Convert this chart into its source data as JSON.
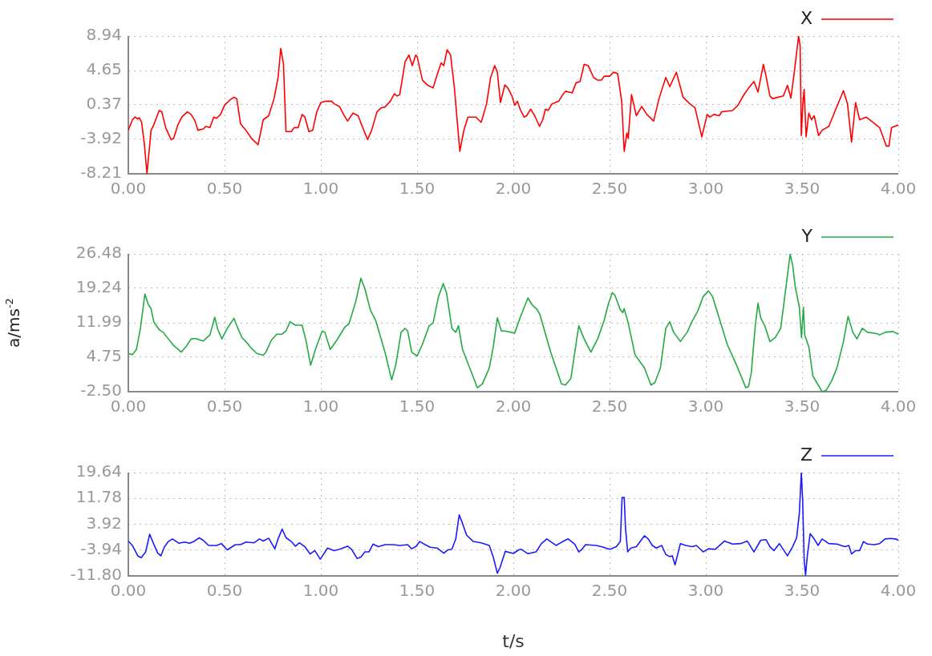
{
  "chart_data": [
    {
      "type": "line",
      "legend": "top right",
      "grid": true,
      "x": [
        0,
        0.021,
        0.035,
        0.049,
        0.056,
        0.069,
        0.083,
        0.097,
        0.118,
        0.132,
        0.16,
        0.174,
        0.194,
        0.222,
        0.236,
        0.257,
        0.278,
        0.306,
        0.326,
        0.347,
        0.361,
        0.389,
        0.403,
        0.424,
        0.444,
        0.458,
        0.479,
        0.5,
        0.528,
        0.549,
        0.563,
        0.583,
        0.611,
        0.639,
        0.674,
        0.701,
        0.729,
        0.757,
        0.778,
        0.792,
        0.806,
        0.819,
        0.847,
        0.861,
        0.882,
        0.903,
        0.917,
        0.938,
        0.958,
        0.979,
        1.0,
        1.028,
        1.056,
        1.069,
        1.097,
        1.118,
        1.139,
        1.167,
        1.194,
        1.215,
        1.243,
        1.264,
        1.292,
        1.313,
        1.333,
        1.361,
        1.382,
        1.396,
        1.41,
        1.438,
        1.458,
        1.475,
        1.493,
        1.5,
        1.528,
        1.556,
        1.583,
        1.604,
        1.625,
        1.639,
        1.656,
        1.674,
        1.694,
        1.722,
        1.743,
        1.764,
        1.806,
        1.833,
        1.861,
        1.882,
        1.903,
        1.917,
        1.933,
        1.956,
        1.972,
        1.993,
        2.007,
        2.021,
        2.035,
        2.056,
        2.069,
        2.09,
        2.111,
        2.136,
        2.153,
        2.167,
        2.181,
        2.201,
        2.236,
        2.257,
        2.271,
        2.306,
        2.326,
        2.347,
        2.368,
        2.389,
        2.417,
        2.438,
        2.458,
        2.472,
        2.5,
        2.521,
        2.542,
        2.563,
        2.576,
        2.59,
        2.597,
        2.614,
        2.639,
        2.667,
        2.694,
        2.729,
        2.757,
        2.792,
        2.813,
        2.847,
        2.882,
        2.917,
        2.944,
        2.979,
        3.007,
        3.021,
        3.042,
        3.069,
        3.083,
        3.139,
        3.167,
        3.194,
        3.222,
        3.25,
        3.271,
        3.299,
        3.313,
        3.333,
        3.347,
        3.403,
        3.424,
        3.442,
        3.458,
        3.482,
        3.49,
        3.496,
        3.504,
        3.511,
        3.521,
        3.535,
        3.549,
        3.563,
        3.586,
        3.604,
        3.639,
        3.681,
        3.715,
        3.736,
        3.757,
        3.778,
        3.799,
        3.833,
        3.868,
        3.903,
        3.938,
        3.951,
        3.965,
        4.0
      ],
      "series": [
        {
          "name": "X",
          "color": "#ff0000",
          "values": [
            -2.79,
            -1.48,
            -1.15,
            -1.38,
            -1.21,
            -1.8,
            -4.43,
            -8.21,
            -2.79,
            -2.13,
            -0.33,
            -0.49,
            -2.46,
            -3.94,
            -3.78,
            -2.13,
            -1.15,
            -0.49,
            -0.82,
            -1.64,
            -2.79,
            -2.63,
            -2.3,
            -2.46,
            -1.15,
            -1.31,
            -0.82,
            0.33,
            0.99,
            1.32,
            1.15,
            -1.97,
            -2.79,
            -3.78,
            -4.6,
            -1.48,
            -0.98,
            1.15,
            3.78,
            7.4,
            5.42,
            -2.95,
            -2.95,
            -2.46,
            -2.46,
            -0.82,
            -1.15,
            -2.95,
            -2.79,
            -0.49,
            0.66,
            0.83,
            0.83,
            0.5,
            0.17,
            -0.82,
            -1.64,
            -0.65,
            -0.98,
            -2.3,
            -3.94,
            -2.79,
            -0.49,
            0,
            0.1,
            0.83,
            1.74,
            1.48,
            1.65,
            5.75,
            6.57,
            5.26,
            6.57,
            6.41,
            3.45,
            2.8,
            2.47,
            4.11,
            5.59,
            5.26,
            7.23,
            6.57,
            2.47,
            -5.42,
            -2.79,
            -1.15,
            -1.15,
            -1.8,
            0.5,
            3.78,
            5.26,
            4.44,
            0.66,
            2.86,
            2.47,
            1.48,
            0.33,
            0.83,
            -0.16,
            -1.15,
            -0.98,
            -0.16,
            -0.98,
            -2.3,
            -1.48,
            -0.16,
            -0.33,
            0.5,
            0.83,
            1.65,
            2.07,
            1.87,
            3.12,
            3.29,
            5.42,
            5.26,
            3.78,
            3.45,
            3.45,
            3.94,
            3.94,
            4.44,
            4.27,
            0.83,
            -5.42,
            -3.12,
            -3.78,
            1.65,
            -0.98,
            0.17,
            -0.82,
            -1.64,
            1.15,
            3.78,
            2.63,
            4.44,
            1.32,
            0.5,
            0,
            -3.61,
            -0.82,
            -1.15,
            -0.82,
            -0.98,
            -0.49,
            -0.33,
            0.33,
            1.48,
            2.47,
            3.29,
            1.97,
            5.42,
            3.94,
            1.48,
            1.15,
            1.48,
            2.8,
            1.22,
            4.11,
            8.94,
            7.72,
            -3.45,
            0.5,
            2.3,
            -3.61,
            -0.65,
            -1.48,
            -0.98,
            -3.45,
            -2.79,
            -2.3,
            0.17,
            2.13,
            0.5,
            -4.27,
            0.66,
            -1.48,
            -1.15,
            -1.8,
            -2.46,
            -4.76,
            -4.76,
            -2.46,
            -2.13
          ]
        }
      ],
      "xlim": [
        0,
        4
      ],
      "xticks": [
        {
          "value": 0,
          "label": "0.00"
        },
        {
          "value": 0.5,
          "label": "0.50"
        },
        {
          "value": 1,
          "label": "1.00"
        },
        {
          "value": 1.5,
          "label": "1.50"
        },
        {
          "value": 2,
          "label": "2.00"
        },
        {
          "value": 2.5,
          "label": "2.50"
        },
        {
          "value": 3,
          "label": "3.00"
        },
        {
          "value": 3.5,
          "label": "3.50"
        },
        {
          "value": 4,
          "label": "4.00"
        }
      ],
      "ylim": [
        -8.21,
        8.94
      ],
      "yticks": [
        -8.21,
        -3.92,
        0.37,
        4.65,
        8.94
      ]
    },
    {
      "type": "line",
      "legend": "top right",
      "grid": true,
      "ylabel": "a/ms$^{-2}$",
      "x": [
        0,
        0.021,
        0.042,
        0.063,
        0.086,
        0.104,
        0.118,
        0.132,
        0.16,
        0.181,
        0.208,
        0.236,
        0.275,
        0.299,
        0.326,
        0.347,
        0.389,
        0.424,
        0.449,
        0.465,
        0.486,
        0.514,
        0.549,
        0.569,
        0.59,
        0.611,
        0.639,
        0.667,
        0.701,
        0.715,
        0.743,
        0.771,
        0.799,
        0.819,
        0.84,
        0.868,
        0.903,
        0.924,
        0.947,
        0.972,
        1.007,
        1.021,
        1.049,
        1.083,
        1.125,
        1.146,
        1.181,
        1.208,
        1.229,
        1.257,
        1.285,
        1.333,
        1.368,
        1.389,
        1.417,
        1.438,
        1.451,
        1.472,
        1.5,
        1.528,
        1.563,
        1.583,
        1.611,
        1.636,
        1.653,
        1.681,
        1.701,
        1.715,
        1.736,
        1.771,
        1.813,
        1.84,
        1.875,
        1.896,
        1.917,
        1.938,
        1.958,
        2.007,
        2.035,
        2.076,
        2.097,
        2.125,
        2.139,
        2.194,
        2.25,
        2.271,
        2.299,
        2.34,
        2.368,
        2.403,
        2.438,
        2.472,
        2.493,
        2.514,
        2.528,
        2.556,
        2.569,
        2.576,
        2.597,
        2.632,
        2.681,
        2.715,
        2.736,
        2.764,
        2.792,
        2.813,
        2.833,
        2.868,
        2.903,
        2.931,
        2.958,
        2.986,
        3.014,
        3.035,
        3.069,
        3.111,
        3.16,
        3.208,
        3.222,
        3.236,
        3.257,
        3.271,
        3.285,
        3.306,
        3.333,
        3.361,
        3.389,
        3.41,
        3.438,
        3.451,
        3.465,
        3.486,
        3.497,
        3.507,
        3.514,
        3.535,
        3.556,
        3.604,
        3.625,
        3.653,
        3.681,
        3.715,
        3.739,
        3.764,
        3.785,
        3.813,
        3.84,
        3.889,
        3.903,
        3.931,
        3.972,
        4.0
      ],
      "series": [
        {
          "name": "Y",
          "color": "#22aa44",
          "values": [
            5.55,
            5.27,
            6.38,
            10.82,
            18.04,
            15.82,
            14.99,
            12.21,
            10.55,
            9.99,
            8.6,
            7.21,
            5.83,
            6.94,
            8.6,
            8.71,
            8.16,
            9.44,
            13.16,
            10.55,
            8.6,
            10.82,
            12.93,
            10.82,
            8.88,
            8.05,
            6.66,
            5.55,
            5.16,
            5.83,
            8.33,
            9.6,
            9.6,
            10.27,
            12.21,
            11.49,
            11.49,
            8.05,
            3.05,
            6.38,
            10.27,
            9.99,
            6.38,
            8.33,
            11.1,
            11.77,
            16.38,
            21.37,
            19.15,
            14.71,
            12.49,
            5.83,
            0,
            3.05,
            9.99,
            10.82,
            10.27,
            5.83,
            4.99,
            7.49,
            11.38,
            11.93,
            17.49,
            20.26,
            18.32,
            10.82,
            9.99,
            11.38,
            6.38,
            2.77,
            -1.67,
            -0.84,
            2.5,
            6.94,
            13.04,
            10.27,
            10.27,
            9.82,
            13.04,
            17.21,
            15.82,
            14.71,
            13.6,
            5.83,
            -0.84,
            -1.11,
            0.28,
            11.38,
            8.6,
            5.83,
            8.6,
            12.49,
            15.82,
            18.32,
            17.76,
            14.71,
            14.16,
            14.99,
            11.93,
            5.27,
            2.5,
            -1.11,
            -0.56,
            2.5,
            10.82,
            12.21,
            9.99,
            8.05,
            9.99,
            12.49,
            14.43,
            17.49,
            18.71,
            17.49,
            13.04,
            7.49,
            3.05,
            -1.67,
            -1.39,
            1.39,
            11.38,
            16.1,
            13.04,
            11.38,
            8.05,
            8.88,
            10.82,
            17.49,
            26.4,
            24.15,
            19.43,
            15.27,
            8.88,
            15.27,
            9.44,
            6.94,
            0.83,
            -2.5,
            -2.22,
            -0.28,
            2.5,
            8.05,
            13.32,
            9.99,
            8.6,
            10.82,
            9.99,
            9.71,
            9.44,
            9.99,
            10.16,
            9.6
          ]
        }
      ],
      "xlim": [
        0,
        4
      ],
      "xticks": [
        {
          "value": 0,
          "label": "0.00"
        },
        {
          "value": 0.5,
          "label": "0.50"
        },
        {
          "value": 1,
          "label": "1.00"
        },
        {
          "value": 1.5,
          "label": "1.50"
        },
        {
          "value": 2,
          "label": "2.00"
        },
        {
          "value": 2.5,
          "label": "2.50"
        },
        {
          "value": 3,
          "label": "3.00"
        },
        {
          "value": 3.5,
          "label": "3.50"
        },
        {
          "value": 4,
          "label": "4.00"
        }
      ],
      "ylim": [
        -2.5,
        26.48
      ],
      "yticks": [
        {
          "value": -2.5,
          "label": "-2.50"
        },
        4.75,
        11.99,
        19.24,
        26.48
      ]
    },
    {
      "type": "line",
      "legend": "top right",
      "grid": true,
      "xlabel": "t/s",
      "x": [
        0,
        0.021,
        0.035,
        0.049,
        0.067,
        0.09,
        0.111,
        0.132,
        0.153,
        0.169,
        0.188,
        0.208,
        0.229,
        0.264,
        0.292,
        0.319,
        0.34,
        0.368,
        0.389,
        0.417,
        0.458,
        0.483,
        0.514,
        0.556,
        0.583,
        0.611,
        0.653,
        0.681,
        0.701,
        0.729,
        0.761,
        0.778,
        0.799,
        0.819,
        0.847,
        0.868,
        0.889,
        0.917,
        0.944,
        0.969,
        0.997,
        1.035,
        1.069,
        1.097,
        1.139,
        1.16,
        1.188,
        1.208,
        1.229,
        1.25,
        1.271,
        1.299,
        1.333,
        1.375,
        1.41,
        1.451,
        1.472,
        1.493,
        1.514,
        1.542,
        1.569,
        1.604,
        1.639,
        1.66,
        1.681,
        1.701,
        1.719,
        1.736,
        1.757,
        1.792,
        1.833,
        1.875,
        1.896,
        1.917,
        1.931,
        1.958,
        2.0,
        2.028,
        2.042,
        2.076,
        2.118,
        2.146,
        2.174,
        2.222,
        2.257,
        2.285,
        2.319,
        2.34,
        2.354,
        2.375,
        2.431,
        2.458,
        2.5,
        2.535,
        2.556,
        2.565,
        2.576,
        2.583,
        2.594,
        2.611,
        2.639,
        2.681,
        2.701,
        2.722,
        2.743,
        2.771,
        2.792,
        2.813,
        2.826,
        2.84,
        2.868,
        2.896,
        2.931,
        2.951,
        2.986,
        3.014,
        3.049,
        3.097,
        3.139,
        3.181,
        3.215,
        3.25,
        3.285,
        3.313,
        3.333,
        3.354,
        3.382,
        3.424,
        3.451,
        3.472,
        3.486,
        3.496,
        3.503,
        3.511,
        3.518,
        3.528,
        3.542,
        3.563,
        3.583,
        3.604,
        3.639,
        3.681,
        3.722,
        3.743,
        3.757,
        3.778,
        3.799,
        3.819,
        3.84,
        3.875,
        3.903,
        3.931,
        3.958,
        3.986,
        4.0
      ],
      "series": [
        {
          "name": "Z",
          "color": "#1a1aff",
          "values": [
            -1.18,
            -2.53,
            -4.11,
            -5.69,
            -6.24,
            -4.5,
            0.87,
            -2.13,
            -4.9,
            -5.69,
            -2.92,
            -1.34,
            -0.55,
            -1.89,
            -1.5,
            -1.89,
            -1.34,
            -0.23,
            -0.95,
            -2.53,
            -2.53,
            -1.97,
            -3.87,
            -2.29,
            -2.29,
            -1.5,
            -1.74,
            -0.55,
            -1.18,
            -0.31,
            -3.55,
            -0.55,
            2.45,
            -0.16,
            -1.34,
            -2.76,
            -1.74,
            -2.92,
            -5.13,
            -4.11,
            -6.71,
            -3.32,
            -4.11,
            -3.71,
            -2.76,
            -3.71,
            -6.48,
            -6.08,
            -4.5,
            -4.5,
            -2.13,
            -2.92,
            -2.29,
            -2.29,
            -2.53,
            -2.29,
            -3.55,
            -2.92,
            -1.34,
            -2.29,
            -3.08,
            -3.32,
            -4.9,
            -3.87,
            -3.71,
            -0.55,
            6.8,
            4.19,
            0.63,
            -1.34,
            -1.74,
            -2.53,
            -6.08,
            -10.98,
            -9.24,
            -4.34,
            -4.97,
            -3.87,
            -3.71,
            -5.05,
            -4.5,
            -1.97,
            -0.55,
            -2.53,
            -1.34,
            -0.55,
            -2.13,
            -4.5,
            -3.87,
            -2.29,
            -2.53,
            -2.92,
            -3.71,
            -2.92,
            -1.34,
            12.09,
            12.09,
            2.61,
            -4.5,
            -3.32,
            -2.92,
            0.4,
            -0.55,
            -2.53,
            -3.32,
            -2.53,
            -5.29,
            -5.92,
            -5.69,
            -8.45,
            -1.97,
            -2.53,
            -2.92,
            -2.53,
            -4.5,
            -3.55,
            -3.71,
            -1.18,
            -2.13,
            -1.97,
            -1.18,
            -4.5,
            -0.95,
            -0.79,
            -2.92,
            -4.11,
            -1.97,
            -5.69,
            -2.92,
            -0.16,
            7.35,
            19.64,
            11.3,
            -6.87,
            -11.6,
            -5.29,
            1.03,
            -0.55,
            -2.53,
            -0.55,
            -1.97,
            -2.13,
            -2.92,
            -2.53,
            -5.13,
            -4.11,
            -4.11,
            -1.34,
            -2.13,
            -2.29,
            -1.97,
            -0.55,
            -0.39,
            -0.55,
            -0.95
          ]
        }
      ],
      "xlim": [
        0,
        4
      ],
      "xticks": [
        {
          "value": 0,
          "label": "0.00"
        },
        {
          "value": 0.5,
          "label": "0.50"
        },
        {
          "value": 1,
          "label": "1.00"
        },
        {
          "value": 1.5,
          "label": "1.50"
        },
        {
          "value": 2,
          "label": "2.00"
        },
        {
          "value": 2.5,
          "label": "2.50"
        },
        {
          "value": 3,
          "label": "3.00"
        },
        {
          "value": 3.5,
          "label": "3.50"
        },
        {
          "value": 4,
          "label": "4.00"
        }
      ],
      "ylim": [
        -11.8,
        19.64
      ],
      "yticks": [
        {
          "value": -11.8,
          "label": "-11.80"
        },
        -3.94,
        3.92,
        11.78,
        19.64
      ]
    }
  ]
}
